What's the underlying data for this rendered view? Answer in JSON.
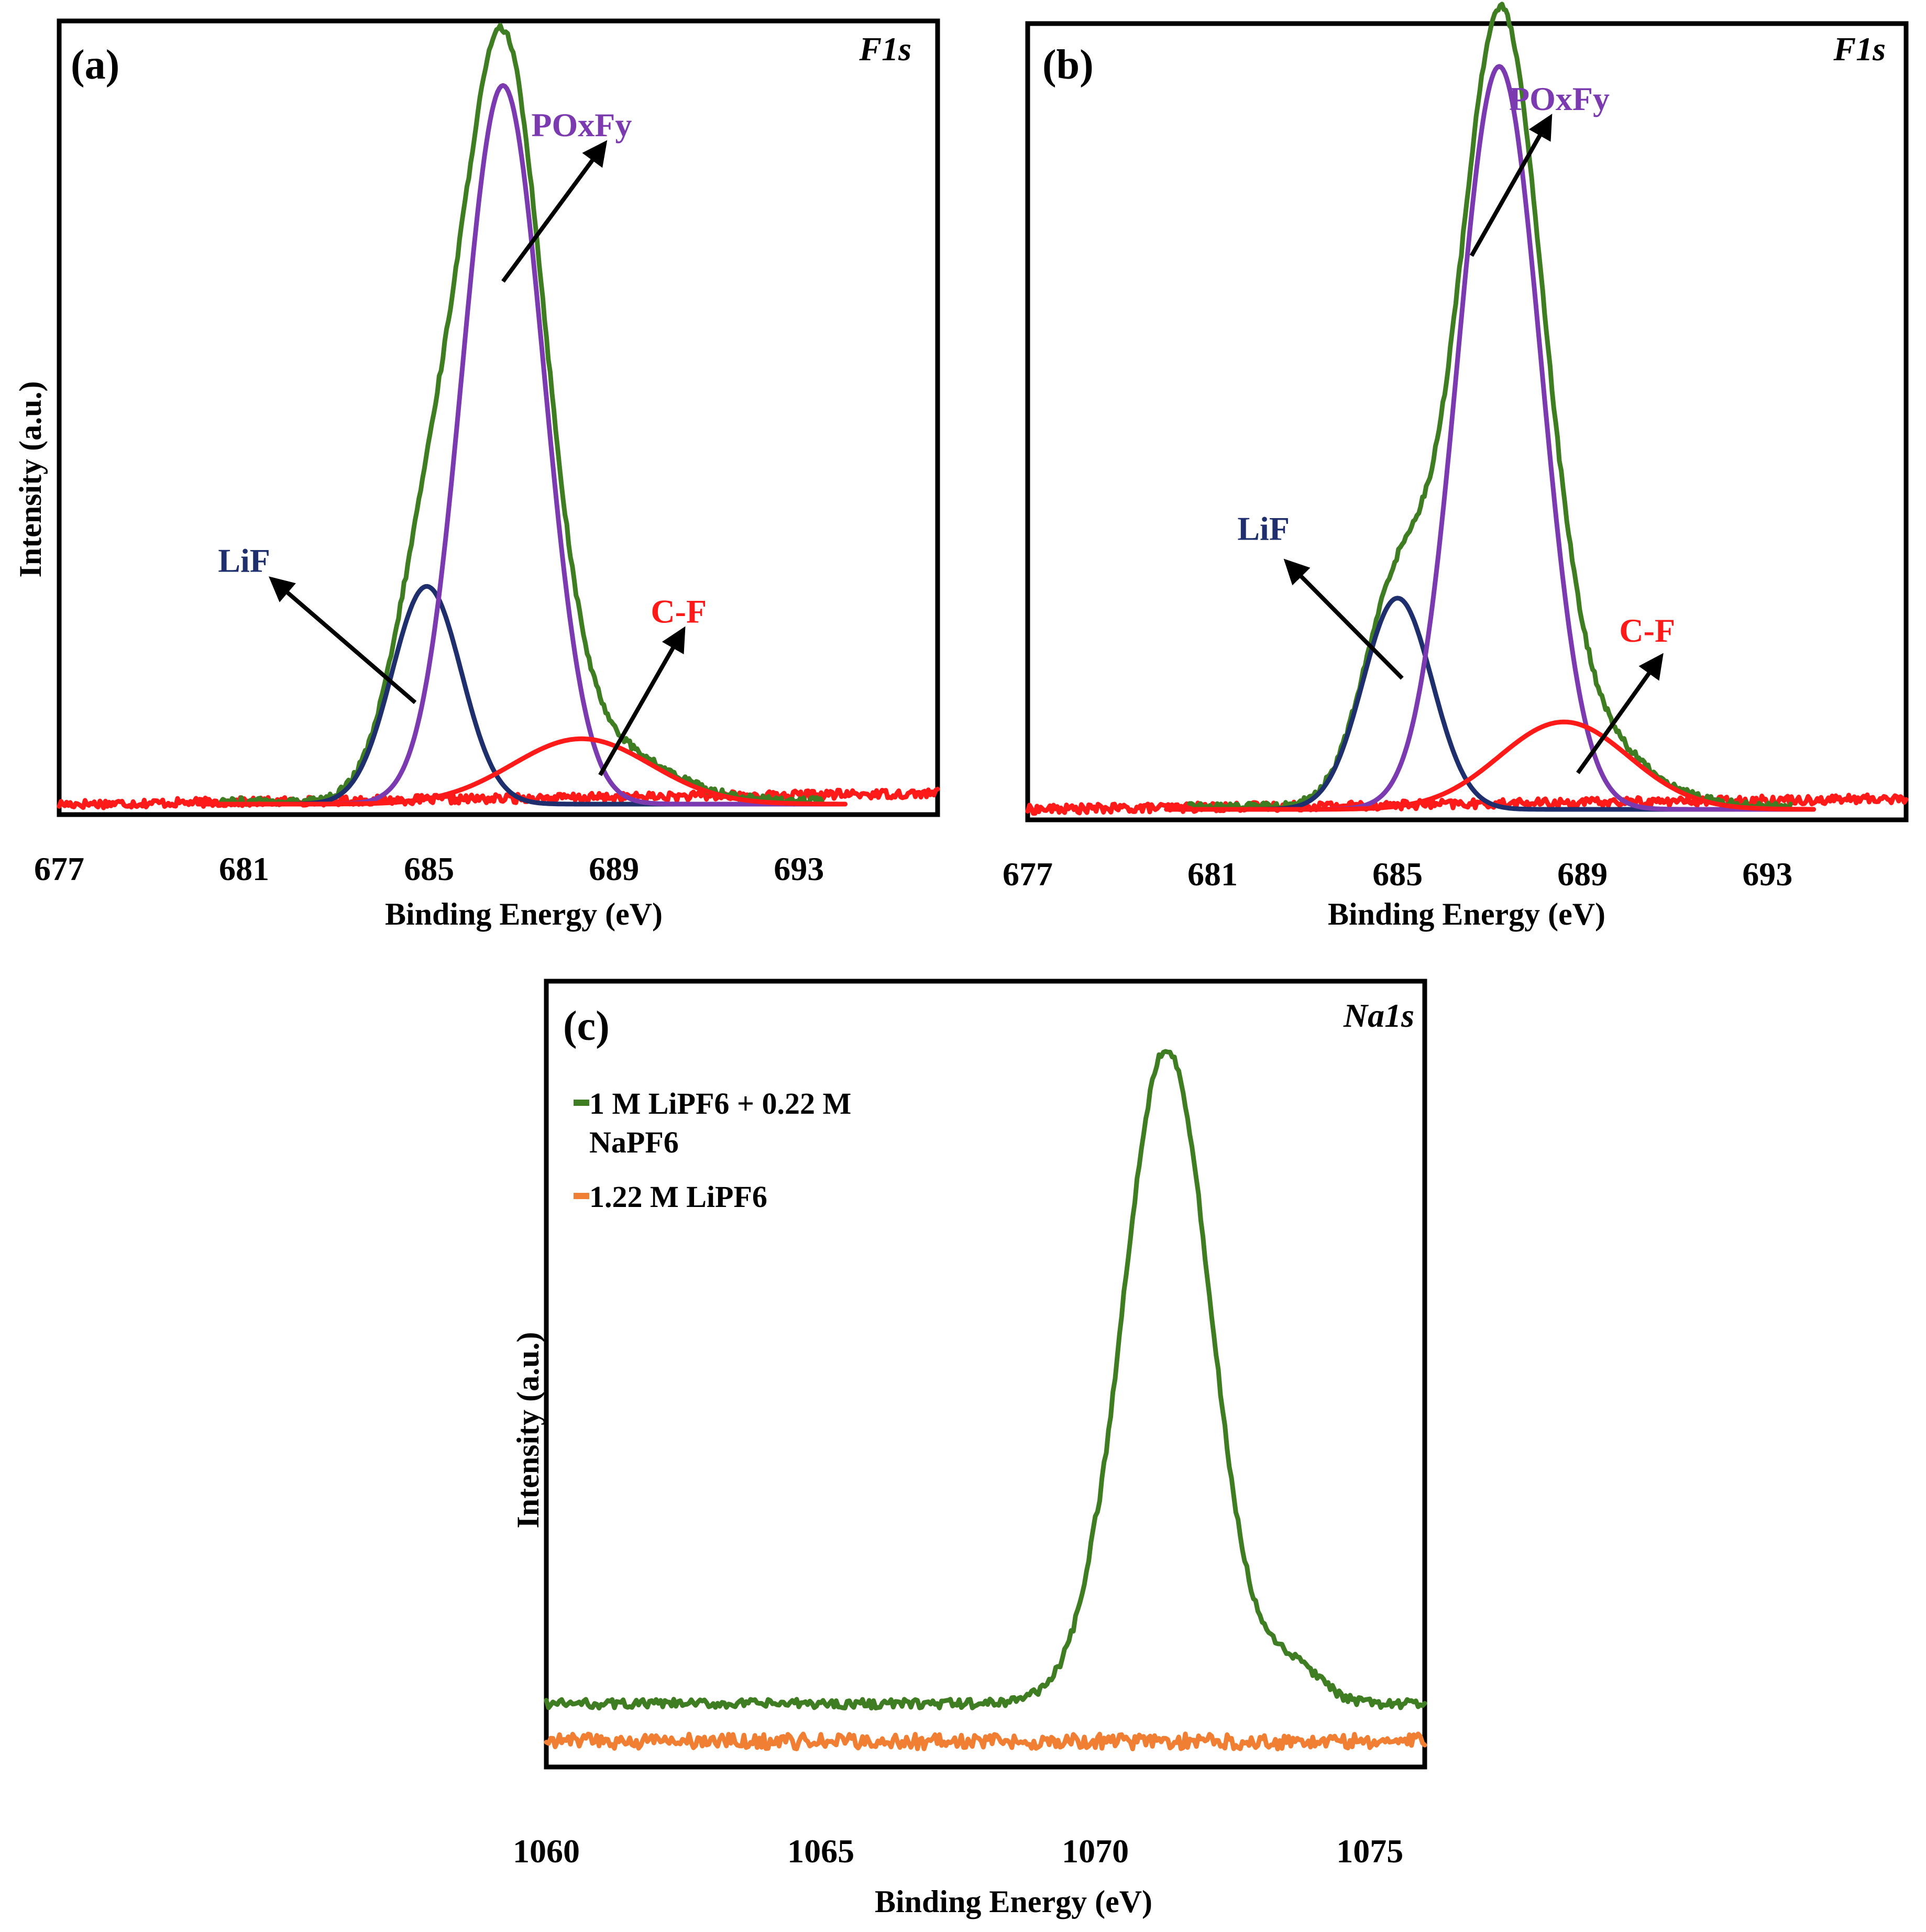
{
  "chart_data": [
    {
      "type": "line",
      "panel_label": "(a)",
      "corner_label": "F1s",
      "xlabel": "Binding Energy (eV)",
      "ylabel": "Intensity (a.u.)",
      "xlim": [
        677,
        696
      ],
      "ylim": [
        0,
        1.05
      ],
      "xticks": [
        "677",
        "681",
        "685",
        "689",
        "693"
      ],
      "xtick_values": [
        677,
        681,
        685,
        689,
        693
      ],
      "peaks": [
        {
          "name": "LiF",
          "color": "#1f2f6e",
          "center": 684.95,
          "height": 0.3,
          "sigma": 0.75
        },
        {
          "name": "POxFy",
          "color": "#7b3ab0",
          "center": 686.6,
          "height": 0.99,
          "sigma": 0.88
        },
        {
          "name": "C-F",
          "color": "#ff1a1a",
          "center": 688.3,
          "height": 0.09,
          "sigma": 1.5
        }
      ],
      "envelope_color": "#3e7d21",
      "background": {
        "color": "#ff1a1a",
        "range": [
          677,
          696
        ],
        "level": 0.0
      },
      "annotations": [
        {
          "text": "POxFy",
          "color": "#7b3ab0",
          "label_pos": [
            688.3,
            0.92
          ],
          "from": [
            686.6,
            0.72
          ],
          "to": [
            688.8,
            0.91
          ]
        },
        {
          "text": "LiF",
          "color": "#1f2f6e",
          "label_pos": [
            681.0,
            0.32
          ],
          "from": [
            684.7,
            0.14
          ],
          "to": [
            681.6,
            0.31
          ]
        },
        {
          "text": "C-F",
          "color": "#ff1a1a",
          "label_pos": [
            690.4,
            0.25
          ],
          "from": [
            688.7,
            0.04
          ],
          "to": [
            690.5,
            0.24
          ]
        }
      ]
    },
    {
      "type": "line",
      "panel_label": "(b)",
      "corner_label": "F1s",
      "xlabel": "Binding Energy (eV)",
      "ylabel": "",
      "xlim": [
        677,
        696
      ],
      "ylim": [
        0,
        1.05
      ],
      "xticks": [
        "677",
        "681",
        "685",
        "689",
        "693"
      ],
      "xtick_values": [
        677,
        681,
        685,
        689,
        693
      ],
      "peaks": [
        {
          "name": "LiF",
          "color": "#1f2f6e",
          "center": 685.0,
          "height": 0.29,
          "sigma": 0.75
        },
        {
          "name": "POxFy",
          "color": "#7b3ab0",
          "center": 687.2,
          "height": 1.02,
          "sigma": 0.9
        },
        {
          "name": "C-F",
          "color": "#ff1a1a",
          "center": 688.6,
          "height": 0.12,
          "sigma": 1.4
        }
      ],
      "envelope_color": "#3e7d21",
      "background": {
        "color": "#ff1a1a",
        "range": [
          677,
          696
        ],
        "level": 0.0
      },
      "annotations": [
        {
          "text": "POxFy",
          "color": "#7b3ab0",
          "label_pos": [
            688.5,
            0.96
          ],
          "from": [
            686.6,
            0.76
          ],
          "to": [
            688.3,
            0.95
          ]
        },
        {
          "text": "LiF",
          "color": "#1f2f6e",
          "label_pos": [
            682.1,
            0.37
          ],
          "from": [
            685.1,
            0.18
          ],
          "to": [
            682.6,
            0.34
          ]
        },
        {
          "text": "C-F",
          "color": "#ff1a1a",
          "label_pos": [
            690.4,
            0.23
          ],
          "from": [
            688.9,
            0.05
          ],
          "to": [
            690.7,
            0.21
          ]
        }
      ]
    },
    {
      "type": "line",
      "panel_label": "(c)",
      "corner_label": "Na1s",
      "xlabel": "Binding Energy (eV)",
      "ylabel": "Intensity (a.u.)",
      "xlim": [
        1060,
        1076
      ],
      "ylim": [
        0,
        1.0
      ],
      "xticks": [
        "1060",
        "1065",
        "1070",
        "1075"
      ],
      "xtick_values": [
        1060,
        1065,
        1070,
        1075
      ],
      "series": [
        {
          "name": "1 M LiPF6 + 0.22 M NaPF6",
          "color": "#3e7d21",
          "peak_center": 1071.3,
          "peak_height": 0.87,
          "sigma": 0.8,
          "baseline": 0.07
        },
        {
          "name": "1.22 M LiPF6",
          "color": "#f07f34",
          "peak_center": 1071.3,
          "peak_height": 0.0,
          "sigma": 1.0,
          "baseline": 0.02
        }
      ],
      "legend": {
        "placement": "top-left",
        "entries": [
          {
            "line1": "1 M LiPF6 + 0.22 M",
            "line2": "NaPF6",
            "color": "#3e7d21"
          },
          {
            "line1": "1.22 M LiPF6",
            "line2": "",
            "color": "#f07f34"
          }
        ]
      }
    }
  ]
}
